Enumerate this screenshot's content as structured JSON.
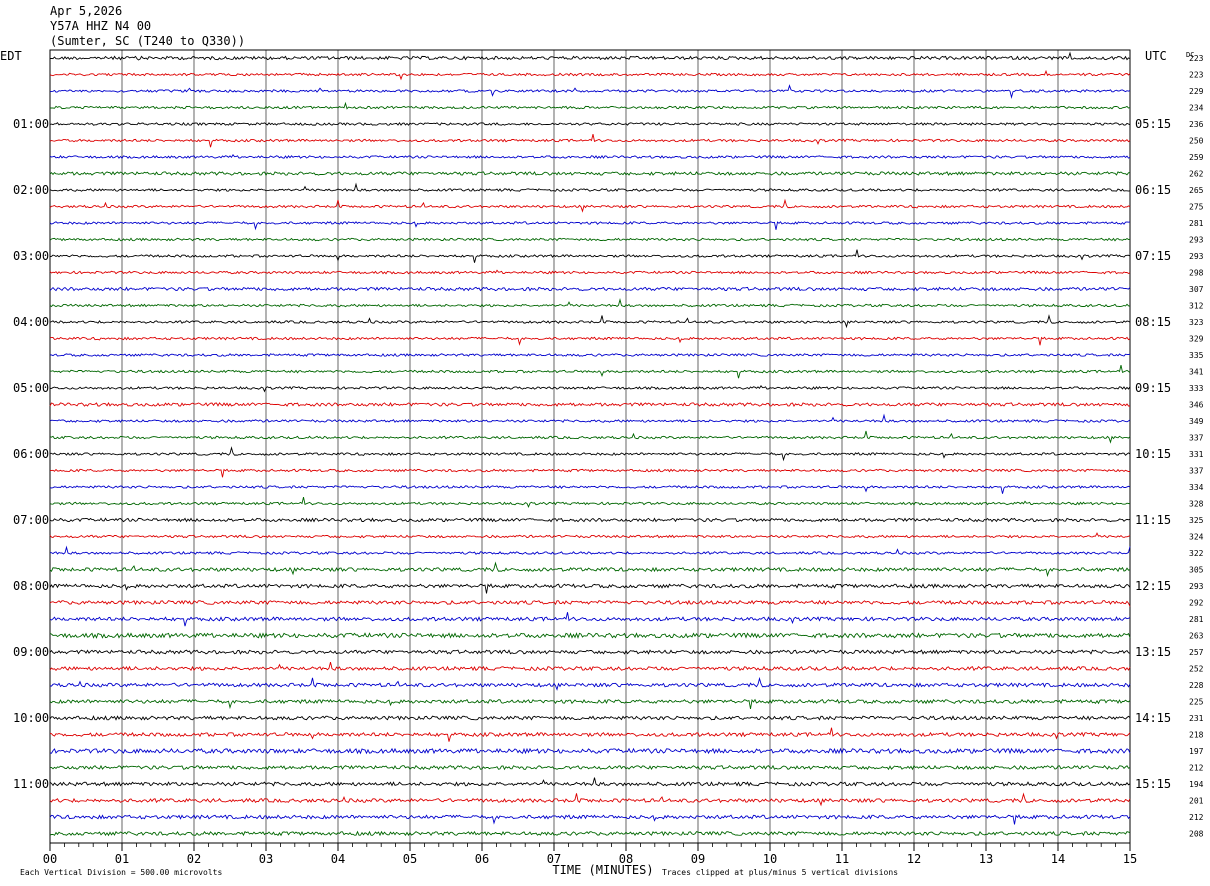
{
  "header": {
    "date": "Apr 5,2026",
    "station": "Y57A HHZ N4 00",
    "location": "(Sumter, SC (T240 to Q330))"
  },
  "chart_data": {
    "type": "line",
    "title": "Apr 5,2026",
    "left_axis_label": "EDT",
    "right_axis_label": "UTC",
    "dc_label": "DC",
    "xlabel": "TIME (MINUTES)",
    "x_range": [
      0,
      15
    ],
    "x_ticks": [
      "00",
      "01",
      "02",
      "03",
      "04",
      "05",
      "06",
      "07",
      "08",
      "09",
      "10",
      "11",
      "12",
      "13",
      "14",
      "15"
    ],
    "trace_colors": [
      "#000000",
      "#dd0000",
      "#0000cc",
      "#006600"
    ],
    "left_hour_labels": [
      "01:00",
      "02:00",
      "03:00",
      "04:00",
      "05:00",
      "06:00",
      "07:00",
      "08:00",
      "09:00",
      "10:00",
      "11:00"
    ],
    "right_hour_labels": [
      "05:15",
      "06:15",
      "07:15",
      "08:15",
      "09:15",
      "10:15",
      "11:15",
      "12:15",
      "13:15",
      "14:15",
      "15:15"
    ],
    "dc_offsets": [
      223,
      223,
      229,
      234,
      236,
      250,
      259,
      262,
      265,
      275,
      281,
      293,
      293,
      298,
      307,
      312,
      323,
      329,
      335,
      341,
      333,
      346,
      349,
      337,
      331,
      337,
      334,
      328,
      325,
      324,
      322,
      305,
      293,
      292,
      281,
      263,
      257,
      252,
      228,
      225,
      231,
      218,
      197,
      212,
      194,
      201,
      212,
      208
    ],
    "grid": true,
    "scale_note": "Each Vertical Division =  500.00 microvolts",
    "clip_note": "Traces clipped at plus/minus 5 vertical divisions"
  }
}
